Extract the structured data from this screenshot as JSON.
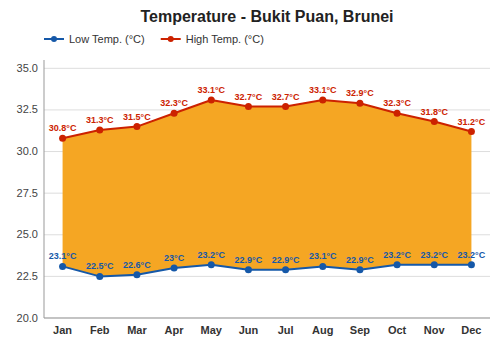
{
  "chart_data": {
    "type": "line",
    "title": "Temperature - Bukit Puan, Brunei",
    "categories": [
      "Jan",
      "Feb",
      "Mar",
      "Apr",
      "May",
      "Jun",
      "Jul",
      "Aug",
      "Sep",
      "Oct",
      "Nov",
      "Dec"
    ],
    "series": [
      {
        "name": "Low Temp. (°C)",
        "color": "#1558a8",
        "marker": "circle",
        "values": [
          23.1,
          22.5,
          22.6,
          23.0,
          23.2,
          22.9,
          22.9,
          23.1,
          22.9,
          23.2,
          23.2,
          23.2
        ],
        "value_labels": [
          "23.1°C",
          "22.5°C",
          "22.6°C",
          "23°C",
          "23.2°C",
          "22.9°C",
          "22.9°C",
          "23.1°C",
          "22.9°C",
          "23.2°C",
          "23.2°C",
          "23.2°C"
        ]
      },
      {
        "name": "High Temp. (°C)",
        "color": "#cc2200",
        "marker": "circle",
        "values": [
          30.8,
          31.3,
          31.5,
          32.3,
          33.1,
          32.7,
          32.7,
          33.1,
          32.9,
          32.3,
          31.8,
          31.2
        ],
        "value_labels": [
          "30.8°C",
          "31.3°C",
          "31.5°C",
          "32.3°C",
          "33.1°C",
          "32.7°C",
          "32.7°C",
          "33.1°C",
          "32.9°C",
          "32.3°C",
          "31.8°C",
          "31.2°C"
        ]
      }
    ],
    "color": "#f5a623",
    "ylim": [
      20.0,
      35.5
    ],
    "yticks": [
      {
        "value": 20.0,
        "label": "20.0"
      },
      22.5,
      {
        "value": 25.0,
        "label": "25.0"
      },
      27.5,
      {
        "value": 30.0,
        "label": "30.0"
      },
      32.5,
      {
        "value": 35.0,
        "label": "35.0"
      }
    ],
    "grid": true,
    "legend": "upper left",
    "data_labels": true
  }
}
